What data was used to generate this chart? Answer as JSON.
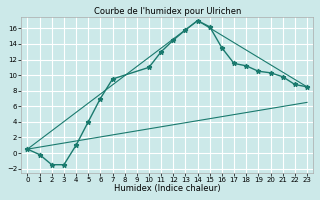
{
  "title": "Courbe de l'humidex pour Ulrichen",
  "xlabel": "Humidex (Indice chaleur)",
  "xlim": [
    -0.5,
    23.5
  ],
  "ylim": [
    -2.5,
    17.5
  ],
  "xticks": [
    0,
    1,
    2,
    3,
    4,
    5,
    6,
    7,
    8,
    9,
    10,
    11,
    12,
    13,
    14,
    15,
    16,
    17,
    18,
    19,
    20,
    21,
    22,
    23
  ],
  "yticks": [
    -2,
    0,
    2,
    4,
    6,
    8,
    10,
    12,
    14,
    16
  ],
  "bg_color": "#cce9e9",
  "grid_color": "#ffffff",
  "line_color": "#1a7a6e",
  "line1_x": [
    0,
    1,
    2,
    3,
    4,
    5,
    6,
    7,
    10,
    11,
    12,
    13,
    14,
    15,
    16,
    17,
    18,
    19,
    20,
    21,
    22,
    23
  ],
  "line1_y": [
    0.5,
    -0.2,
    -1.5,
    -1.5,
    1.0,
    4.0,
    7.0,
    9.5,
    11.0,
    13.0,
    14.5,
    15.8,
    17.0,
    16.2,
    13.5,
    11.5,
    11.2,
    10.5,
    10.3,
    9.8,
    8.8,
    8.5
  ],
  "line2_x": [
    0,
    14,
    23
  ],
  "line2_y": [
    0.5,
    17.0,
    8.5
  ],
  "line3_x": [
    0,
    23
  ],
  "line3_y": [
    0.5,
    6.5
  ],
  "title_fontsize": 6,
  "xlabel_fontsize": 6,
  "tick_fontsize": 5
}
